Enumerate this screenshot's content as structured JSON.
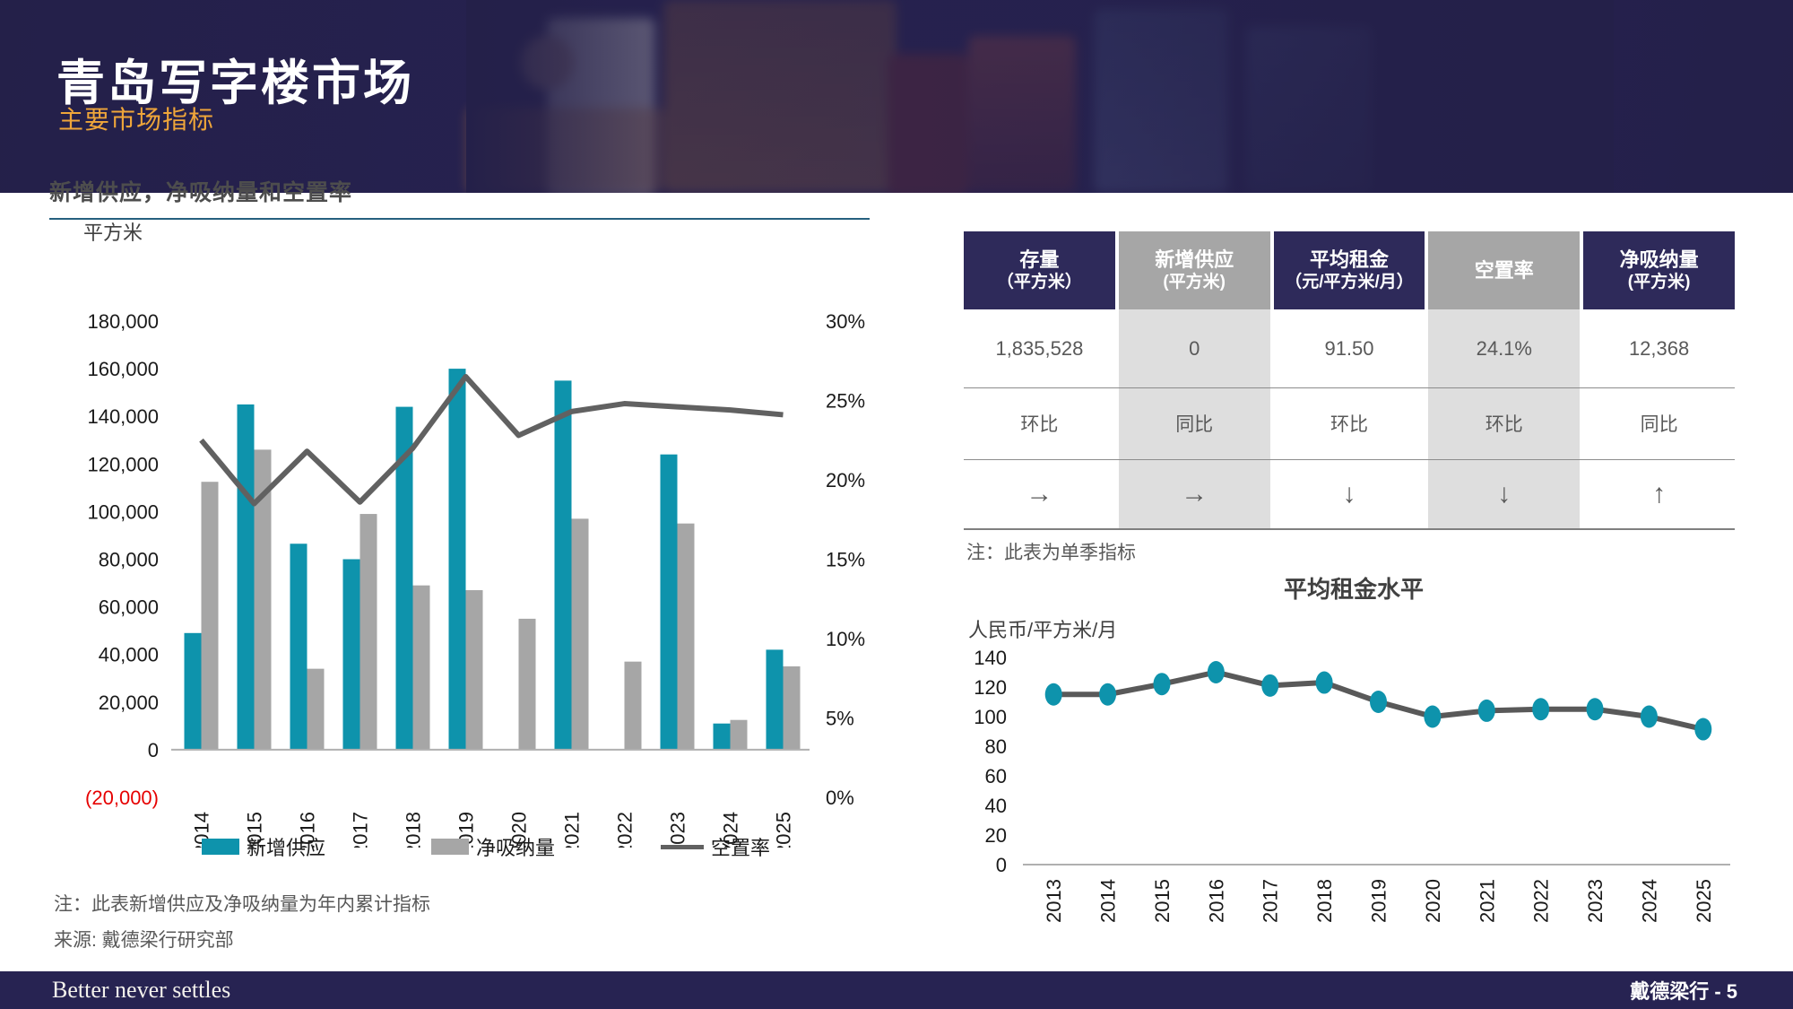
{
  "header": {
    "title": "青岛写字楼市场",
    "subtitle": "主要市场指标"
  },
  "left_section": {
    "title": "新增供应，净吸纳量和空置率",
    "unit_label": "平方米",
    "note": "注：此表新增供应及净吸纳量为年内累计指标",
    "source": "来源: 戴德梁行研究部",
    "legend": [
      {
        "label": "新增供应",
        "swatch": "bar",
        "color": "#0e93ac"
      },
      {
        "label": "净吸纳量",
        "swatch": "bar",
        "color": "#a6a6a6"
      },
      {
        "label": "空置率",
        "swatch": "line",
        "color": "#616161"
      }
    ]
  },
  "chart_data": [
    {
      "type": "bar+line",
      "title": "新增供应，净吸纳量和空置率",
      "categories": [
        "2014",
        "2015",
        "2016",
        "2017",
        "2018",
        "2019",
        "2020",
        "2021",
        "2022",
        "2023",
        "2024",
        "2025"
      ],
      "series": [
        {
          "name": "新增供应",
          "type": "bar",
          "color": "#0e93ac",
          "values": [
            49000,
            145000,
            86500,
            80000,
            144000,
            160000,
            0,
            155000,
            0,
            124000,
            11000,
            42000
          ]
        },
        {
          "name": "净吸纳量",
          "type": "bar",
          "color": "#a6a6a6",
          "values": [
            112500,
            126000,
            34000,
            99000,
            69000,
            67000,
            55000,
            97000,
            37000,
            95000,
            12500,
            35000
          ]
        },
        {
          "name": "空置率",
          "type": "line",
          "axis": "right",
          "color": "#616161",
          "values": [
            22.5,
            18.5,
            21.8,
            18.6,
            22.0,
            26.5,
            22.8,
            24.3,
            24.8,
            24.6,
            24.4,
            24.1
          ]
        }
      ],
      "left_axis": {
        "label": "平方米",
        "min": -20000,
        "max": 180000,
        "tick": 20000,
        "negative_color": "#e60000"
      },
      "right_axis": {
        "min": 0,
        "max": 30,
        "tick": 5,
        "suffix": "%"
      },
      "legend_position": "bottom",
      "grid": false
    },
    {
      "type": "line",
      "title": "平均租金水平",
      "ylabel": "人民币/平方米/月",
      "categories": [
        "2013",
        "2014",
        "2015",
        "2016",
        "2017",
        "2018",
        "2019",
        "2020",
        "2021",
        "2022",
        "2023",
        "2024",
        "2025"
      ],
      "values": [
        115,
        115,
        122,
        130,
        121,
        123,
        110,
        100,
        104,
        105,
        105,
        100,
        91.5
      ],
      "ylim": [
        0,
        140
      ],
      "tick": 20,
      "line_color": "#595959",
      "marker_color": "#0e93ac",
      "grid": false
    }
  ],
  "table": {
    "columns": [
      {
        "line1": "存量",
        "line2": "（平方米）"
      },
      {
        "line1": "新增供应",
        "line2": "(平方米)"
      },
      {
        "line1": "平均租金",
        "line2": "（元/平方米/月）"
      },
      {
        "line1": "空置率",
        "line2": ""
      },
      {
        "line1": "净吸纳量",
        "line2": "(平方米)"
      }
    ],
    "values": [
      "1,835,528",
      "0",
      "91.50",
      "24.1%",
      "12,368"
    ],
    "compare_labels": [
      "环比",
      "同比",
      "环比",
      "环比",
      "同比"
    ],
    "trend_arrows": [
      "→",
      "→",
      "↓",
      "↓",
      "↑"
    ],
    "note": "注：此表为单季指标"
  },
  "rent_chart": {
    "title": "平均租金水平",
    "unit_label": "人民币/平方米/月"
  },
  "footer": {
    "left": "Better never settles",
    "right": "戴德梁行 - 5"
  },
  "colors": {
    "navy": "#272254",
    "teal": "#0e93ac",
    "bar_gray": "#a6a6a6",
    "line_gray": "#616161",
    "accent_orange": "#efa63a",
    "negative_red": "#e60000",
    "table_header_navy": "#2e2a5a",
    "table_shade": "#dedede"
  }
}
